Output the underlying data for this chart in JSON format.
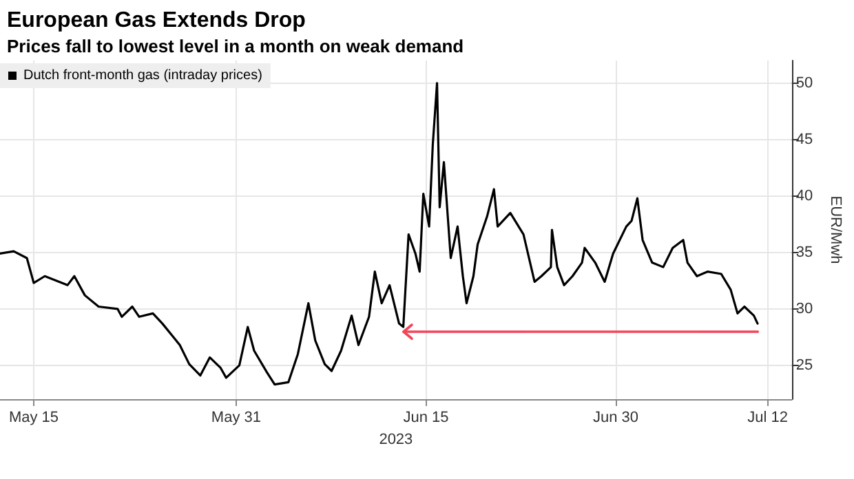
{
  "chart_data": {
    "type": "line",
    "title": "European Gas Extends Drop",
    "subtitle": "Prices fall to lowest level in a month on weak demand",
    "xlabel": "2023",
    "ylabel": "EUR/Mwh",
    "x": [
      "2023-05-12T08:00",
      "2023-05-13T10:00",
      "2023-05-14T11:00",
      "2023-05-15T00:00",
      "2023-05-15T21:00",
      "2023-05-17T16:00",
      "2023-05-18T05:00",
      "2023-05-19T01:00",
      "2023-05-20T03:00",
      "2023-05-21T15:00",
      "2023-05-21T23:00",
      "2023-05-22T19:00",
      "2023-05-23T08:00",
      "2023-05-24T10:00",
      "2023-05-25T04:00",
      "2023-05-26T13:00",
      "2023-05-27T07:00",
      "2023-05-28T04:00",
      "2023-05-28T22:00",
      "2023-05-29T18:00",
      "2023-05-30T05:00",
      "2023-05-31T06:00",
      "2023-05-31T22:00",
      "2023-06-01T10:00",
      "2023-06-02T10:00",
      "2023-06-03T01:00",
      "2023-06-04T03:00",
      "2023-06-04T21:00",
      "2023-06-05T17:00",
      "2023-06-06T06:00",
      "2023-06-07T00:00",
      "2023-06-07T13:00",
      "2023-06-08T07:00",
      "2023-06-09T03:00",
      "2023-06-09T16:00",
      "2023-06-10T12:00",
      "2023-06-10T23:00",
      "2023-06-11T12:00",
      "2023-06-12T03:00",
      "2023-06-12T21:00",
      "2023-06-13T05:00",
      "2023-06-13T15:00",
      "2023-06-14T04:00",
      "2023-06-14T12:00",
      "2023-06-14T19:00",
      "2023-06-15T06:00",
      "2023-06-15T13:00",
      "2023-06-15T21:00",
      "2023-06-16T02:00",
      "2023-06-16T10:00",
      "2023-06-16T23:00",
      "2023-06-17T12:00",
      "2023-06-17T22:00",
      "2023-06-18T05:00",
      "2023-06-18T18:00",
      "2023-06-19T02:00",
      "2023-06-19T20:00",
      "2023-06-20T09:00",
      "2023-06-20T16:00",
      "2023-06-21T16:00",
      "2023-06-22T17:00",
      "2023-06-23T14:00",
      "2023-06-24T03:00",
      "2023-06-24T21:00",
      "2023-06-24T23:00",
      "2023-06-25T09:00",
      "2023-06-25T22:00",
      "2023-06-26T14:00",
      "2023-06-27T08:00",
      "2023-06-27T13:00",
      "2023-06-28T09:00",
      "2023-06-29T03:00",
      "2023-06-29T19:00",
      "2023-06-30T20:00",
      "2023-07-01T06:00",
      "2023-07-01T17:00",
      "2023-07-02T03:00",
      "2023-07-02T21:00",
      "2023-07-03T18:00",
      "2023-07-04T12:00",
      "2023-07-05T08:00",
      "2023-07-05T16:00",
      "2023-07-06T10:00",
      "2023-07-07T06:00",
      "2023-07-08T08:00",
      "2023-07-09T02:00",
      "2023-07-09T15:00",
      "2023-07-10T04:00",
      "2023-07-10T22:00",
      "2023-07-11T05:00"
    ],
    "series": [
      {
        "name": "Dutch front-month gas (intraday prices)",
        "color": "#000000",
        "values": [
          34.9,
          35.1,
          34.5,
          32.3,
          32.9,
          32.1,
          32.9,
          31.2,
          30.2,
          30.0,
          29.3,
          30.2,
          29.3,
          29.6,
          28.7,
          26.8,
          25.1,
          24.1,
          25.7,
          24.8,
          23.9,
          25.0,
          28.4,
          26.3,
          24.4,
          23.3,
          23.5,
          26.0,
          30.5,
          27.2,
          25.1,
          24.5,
          26.3,
          29.4,
          26.8,
          29.3,
          33.3,
          30.5,
          32.1,
          28.7,
          28.4,
          36.6,
          34.9,
          33.3,
          40.2,
          37.3,
          44.6,
          50.0,
          39.0,
          43.0,
          34.5,
          37.3,
          32.9,
          30.5,
          32.9,
          35.7,
          38.2,
          40.6,
          37.3,
          38.5,
          36.6,
          32.4,
          32.9,
          33.7,
          37.0,
          33.7,
          32.1,
          32.9,
          34.1,
          35.4,
          34.1,
          32.4,
          34.9,
          37.3,
          37.8,
          39.8,
          36.1,
          34.1,
          33.7,
          35.4,
          36.1,
          34.1,
          32.9,
          33.3,
          33.1,
          31.7,
          29.6,
          30.2,
          29.4,
          28.7
        ]
      },
      {
        "color": "#f0465a",
        "x": [
          "2023-06-13T05:00",
          "2023-07-11T05:00"
        ],
        "values": [
          28,
          28
        ]
      }
    ],
    "xlim": [
      "2023-05-12T08:00",
      "2023-07-13T22:00"
    ],
    "xticks": [
      {
        "value": "2023-05-15",
        "label": "May 15"
      },
      {
        "value": "2023-05-31",
        "label": "May 31"
      },
      {
        "value": "2023-06-15",
        "label": "Jun 15"
      },
      {
        "value": "2023-06-30",
        "label": "Jun 30"
      },
      {
        "value": "2023-07-12",
        "label": "Jul 12"
      }
    ],
    "ylim": [
      22,
      52
    ],
    "yticks": [
      25,
      30,
      35,
      40,
      45,
      50
    ],
    "grid": true,
    "legend": "top left",
    "marker": "none",
    "line_style": "solid"
  }
}
